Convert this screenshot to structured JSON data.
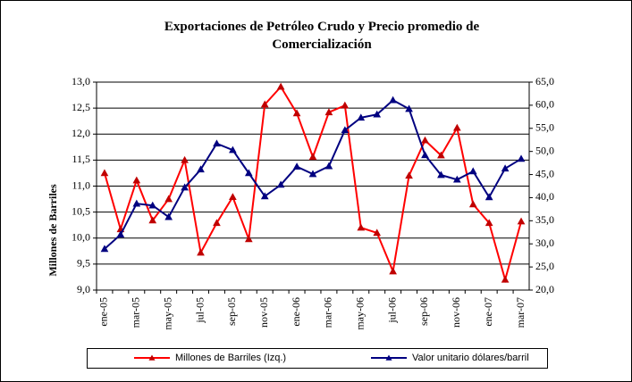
{
  "chart_data": {
    "type": "line",
    "title": "Exportaciones de Petróleo Crudo y Precio promedio de Comercialización",
    "ylabel": "Millones de Barriles",
    "categories": [
      "ene-05",
      null,
      "mar-05",
      null,
      "may-05",
      null,
      "jul-05",
      null,
      "sep-05",
      null,
      "nov-05",
      null,
      "ene-06",
      null,
      "mar-06",
      null,
      "may-06",
      null,
      "jul-06",
      null,
      "sep-06",
      null,
      "nov-06",
      null,
      "ene-07",
      null,
      "mar-07"
    ],
    "series": [
      {
        "name": "Millones de Barriles (Izq.)",
        "color": "#ff0000",
        "marker_color": "#c00000",
        "values": [
          11.25,
          10.17,
          11.11,
          10.34,
          10.75,
          11.5,
          9.72,
          10.29,
          10.79,
          9.98,
          12.57,
          12.91,
          12.4,
          11.56,
          12.42,
          12.55,
          10.2,
          10.1,
          9.36,
          11.2,
          11.88,
          11.59,
          12.12,
          10.65,
          10.29,
          9.2,
          10.32
        ]
      },
      {
        "name": "Valor unitario dólares/barril",
        "color": "#000080",
        "marker_color": "#000080",
        "axis": "y2",
        "values": [
          28.9,
          32.0,
          38.7,
          38.3,
          35.8,
          42.2,
          46.1,
          51.7,
          50.3,
          45.3,
          40.3,
          42.8,
          46.7,
          45.1,
          46.8,
          54.6,
          57.3,
          58.0,
          61.1,
          59.2,
          49.2,
          44.9,
          43.9,
          45.7,
          40.1,
          46.3,
          48.4
        ]
      }
    ],
    "ylim": [
      9,
      13
    ],
    "yticks": [
      {
        "value": 9,
        "label": "9,0"
      },
      {
        "value": 9.5,
        "label": "9,5"
      },
      {
        "value": 10,
        "label": "10,0"
      },
      {
        "value": 10.5,
        "label": "10,5"
      },
      {
        "value": 11,
        "label": "11,0"
      },
      {
        "value": 11.5,
        "label": "11,5"
      },
      {
        "value": 12,
        "label": "12,0"
      },
      {
        "value": 12.5,
        "label": "12,5"
      },
      {
        "value": 13,
        "label": "13,0"
      }
    ],
    "y2lim": [
      20,
      65
    ],
    "y2ticks": [
      {
        "value": 20,
        "label": "20,0"
      },
      {
        "value": 25,
        "label": "25,0"
      },
      {
        "value": 30,
        "label": "30,0"
      },
      {
        "value": 35,
        "label": "35,0"
      },
      {
        "value": 40,
        "label": "40,0"
      },
      {
        "value": 45,
        "label": "45,0"
      },
      {
        "value": 50,
        "label": "50,0"
      },
      {
        "value": 55,
        "label": "55,0"
      },
      {
        "value": 60,
        "label": "60,0"
      },
      {
        "value": 65,
        "label": "65,0"
      }
    ],
    "grid": true,
    "legend": "bottom"
  }
}
